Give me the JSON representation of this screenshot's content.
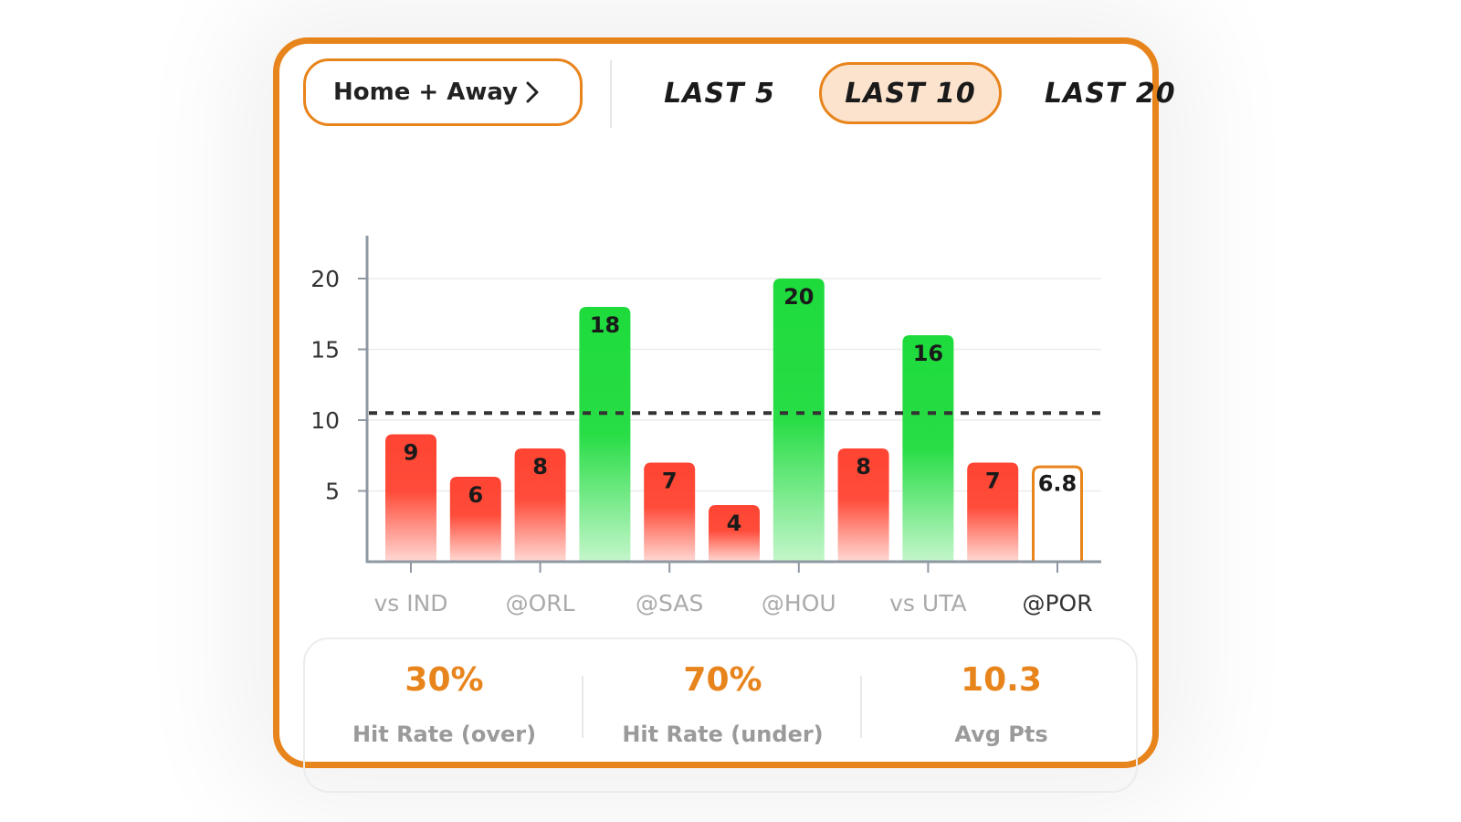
{
  "filter": {
    "label": "Home + Away"
  },
  "tabs": [
    {
      "label": "LAST 5",
      "active": false
    },
    {
      "label": "LAST 10",
      "active": true
    },
    {
      "label": "LAST 20",
      "active": false
    }
  ],
  "chart_data": {
    "type": "bar",
    "categories": [
      "vs IND",
      "",
      "@ORL",
      "",
      "@SAS",
      "",
      "@HOU",
      "",
      "vs UTA",
      "",
      "@POR"
    ],
    "values": [
      9,
      6,
      8,
      18,
      7,
      4,
      20,
      8,
      16,
      7,
      6.8
    ],
    "value_labels": [
      "9",
      "6",
      "8",
      "18",
      "7",
      "4",
      "20",
      "8",
      "16",
      "7",
      "6.8"
    ],
    "line": 10.5,
    "projection_index": 10,
    "yticks": [
      5,
      10,
      15,
      20
    ],
    "ylim": [
      0,
      23
    ],
    "colors": {
      "over": "#1EDB3C",
      "under": "#FF4433",
      "projection": "#E8841C"
    },
    "grid": true
  },
  "stats": [
    {
      "value": "30%",
      "label": "Hit Rate (over)"
    },
    {
      "value": "70%",
      "label": "Hit Rate (under)"
    },
    {
      "value": "10.3",
      "label": "Avg Pts"
    }
  ],
  "colors": {
    "accent": "#E8841C",
    "accent_light": "#FCE3CE"
  }
}
